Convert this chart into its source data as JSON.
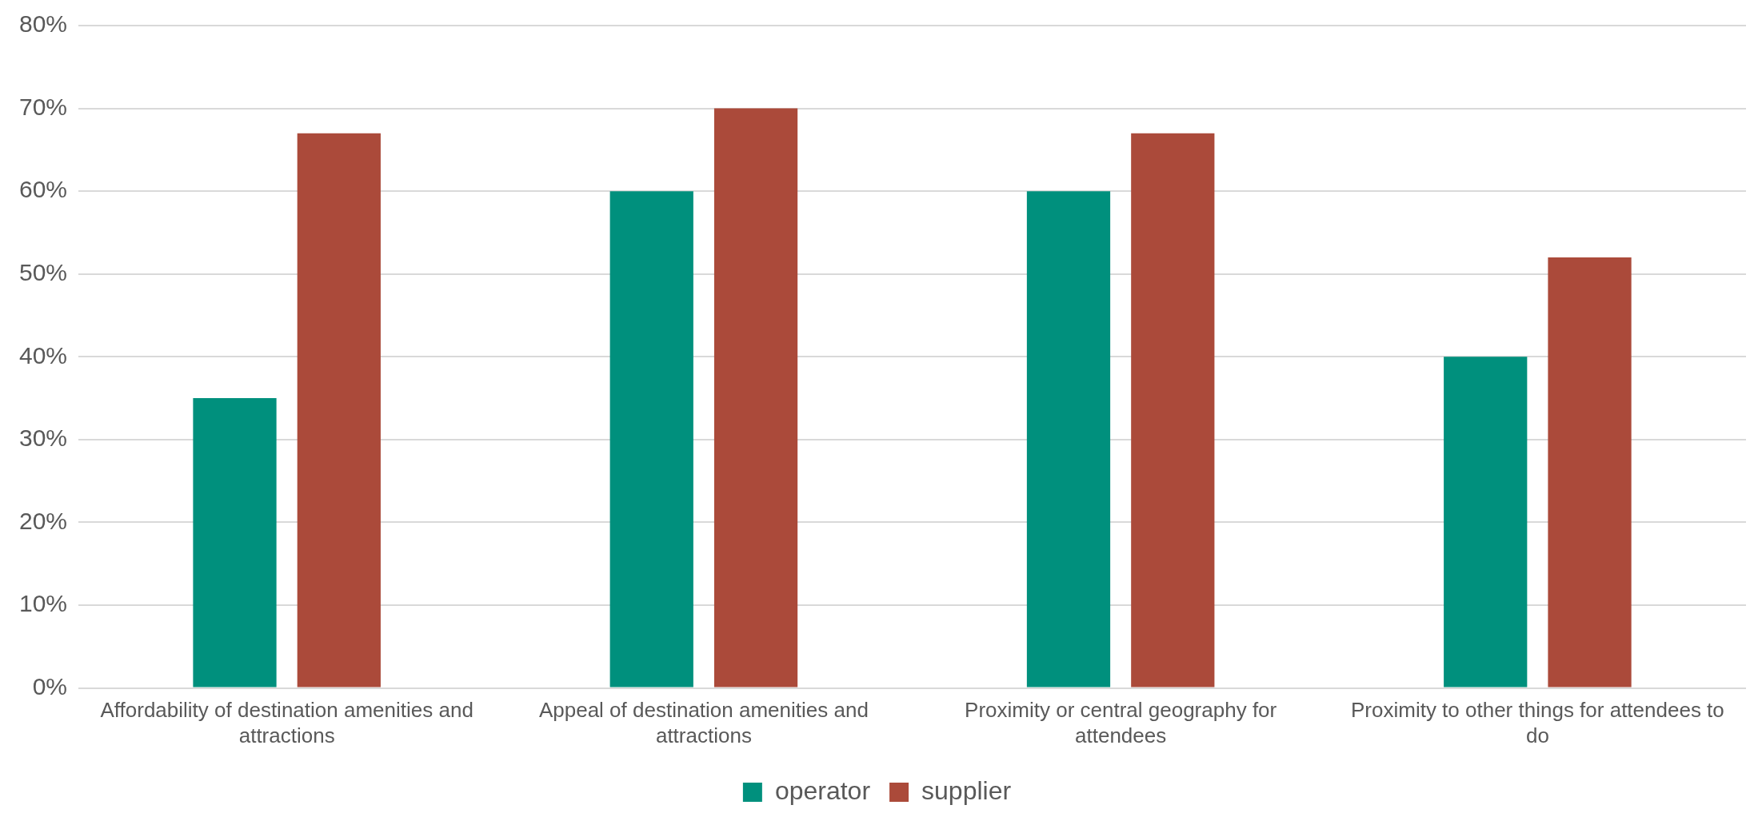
{
  "chart_data": {
    "type": "bar",
    "categories": [
      "Affordability of destination amenities and attractions",
      "Appeal of destination amenities and attractions",
      "Proximity or central geography for attendees",
      "Proximity to other things for attendees to do"
    ],
    "series": [
      {
        "name": "operator",
        "color": "#00907d",
        "values": [
          35,
          60,
          60,
          40
        ]
      },
      {
        "name": "supplier",
        "color": "#ab4a3a",
        "values": [
          67,
          70,
          67,
          52
        ]
      }
    ],
    "ylim": [
      0,
      80
    ],
    "yticks": [
      {
        "value": 0,
        "label": "0%"
      },
      {
        "value": 10,
        "label": "10%"
      },
      {
        "value": 20,
        "label": "20%"
      },
      {
        "value": 30,
        "label": "30%"
      },
      {
        "value": 40,
        "label": "40%"
      },
      {
        "value": 50,
        "label": "50%"
      },
      {
        "value": 60,
        "label": "60%"
      },
      {
        "value": 70,
        "label": "70%"
      },
      {
        "value": 80,
        "label": "80%"
      }
    ],
    "grid": "y",
    "legend": "bottom"
  }
}
